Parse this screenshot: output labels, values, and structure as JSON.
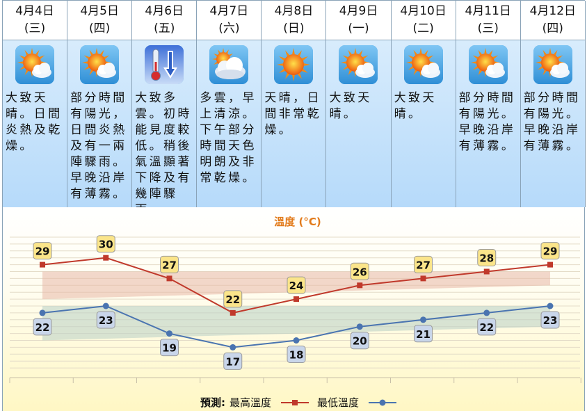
{
  "days": [
    {
      "date": "4月4日",
      "weekday": "(三)",
      "icon": "sunny-periods-icon",
      "desc": "大致天晴。日間炎熱及乾燥。"
    },
    {
      "date": "4月5日",
      "weekday": "(四)",
      "icon": "sunny-periods-icon",
      "desc": "部分時間有陽光，日間炎熱及有一兩陣驟雨。早晚沿岸有薄霧。"
    },
    {
      "date": "4月6日",
      "weekday": "(五)",
      "icon": "temperature-drop-icon",
      "desc": "大致多雲。初時能見度較低。稍後氣溫顯著下降及有幾陣驟雨。"
    },
    {
      "date": "4月7日",
      "weekday": "(六)",
      "icon": "cloudy-icon",
      "desc": "多雲，早上清涼。下午部分時間天色明朗及非常乾燥。"
    },
    {
      "date": "4月8日",
      "weekday": "(日)",
      "icon": "sunny-icon",
      "desc": "天晴，日間非常乾燥。"
    },
    {
      "date": "4月9日",
      "weekday": "(一)",
      "icon": "sunny-periods-icon",
      "desc": "大致天晴。"
    },
    {
      "date": "4月10日",
      "weekday": "(二)",
      "icon": "sunny-periods-icon",
      "desc": "大致天晴。"
    },
    {
      "date": "4月11日",
      "weekday": "(三)",
      "icon": "sunny-periods-icon",
      "desc": "部分時間有陽光。早晚沿岸有薄霧。"
    },
    {
      "date": "4月12日",
      "weekday": "(四)",
      "icon": "sunny-periods-icon",
      "desc": "部分時間有陽光。早晚沿岸有薄霧。"
    }
  ],
  "chart_data": {
    "type": "line",
    "title": "溫度 (°C)",
    "categories": [
      "4月4日",
      "4月5日",
      "4月6日",
      "4月7日",
      "4月8日",
      "4月9日",
      "4月10日",
      "4月11日",
      "4月12日"
    ],
    "series": [
      {
        "name": "最高溫度",
        "values": [
          29,
          30,
          27,
          22,
          24,
          26,
          27,
          28,
          29
        ],
        "color": "#c0392b",
        "label_bg": "#fbe58a",
        "marker": "square"
      },
      {
        "name": "最低溫度",
        "values": [
          22,
          23,
          19,
          17,
          18,
          20,
          21,
          22,
          23
        ],
        "color": "#4a74b0",
        "label_bg": "#c9d6ea",
        "marker": "circle"
      }
    ],
    "bands": [
      {
        "name": "max-normal-range",
        "from": [
          24,
          26
        ],
        "to": [
          28,
          28
        ],
        "color": "#e8b8a8"
      },
      {
        "name": "min-normal-range",
        "from": [
          18,
          20
        ],
        "to": [
          23,
          23
        ],
        "color": "#b8d0c4"
      }
    ],
    "ylim": [
      13,
      33
    ],
    "grid": true,
    "legend": {
      "prefix": "預測:",
      "position": "bottom-center"
    }
  }
}
